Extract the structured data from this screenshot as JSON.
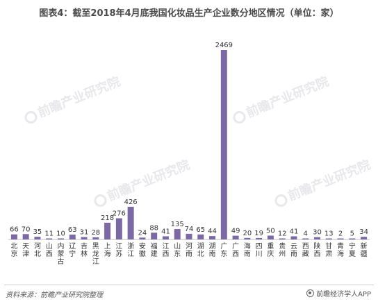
{
  "title": "图表4：截至2018年4月底我国化妆品生产企业数分地区情况（单位：家）",
  "footer": {
    "source": "资料来源：前瞻产业研究院整理",
    "brand": "前瞻经济学人APP"
  },
  "watermark": {
    "text": "前瞻产业研究院"
  },
  "colors": {
    "bar": "#7d68a6",
    "axis": "#bfbfbf",
    "text": "#333333"
  },
  "chart_data": {
    "type": "bar",
    "title": "图表4：截至2018年4月底我国化妆品生产企业数分地区情况（单位：家）",
    "xlabel": "",
    "ylabel": "",
    "ylim": [
      0,
      2469
    ],
    "grid": false,
    "categories": [
      "北京",
      "天津",
      "河北",
      "山西",
      "内蒙古",
      "辽宁",
      "吉林",
      "黑龙江",
      "上海",
      "江苏",
      "浙江",
      "安徽",
      "福建",
      "江西",
      "山东",
      "河南",
      "湖北",
      "湖南",
      "广东",
      "广西",
      "海南",
      "四川",
      "重庆",
      "贵州",
      "云南",
      "西藏",
      "陕西",
      "甘肃",
      "青海",
      "宁夏",
      "新疆"
    ],
    "values": [
      66,
      70,
      35,
      11,
      10,
      63,
      31,
      28,
      218,
      276,
      426,
      24,
      88,
      41,
      135,
      74,
      65,
      44,
      2469,
      49,
      20,
      19,
      50,
      12,
      41,
      4,
      30,
      13,
      2,
      5,
      34
    ]
  }
}
